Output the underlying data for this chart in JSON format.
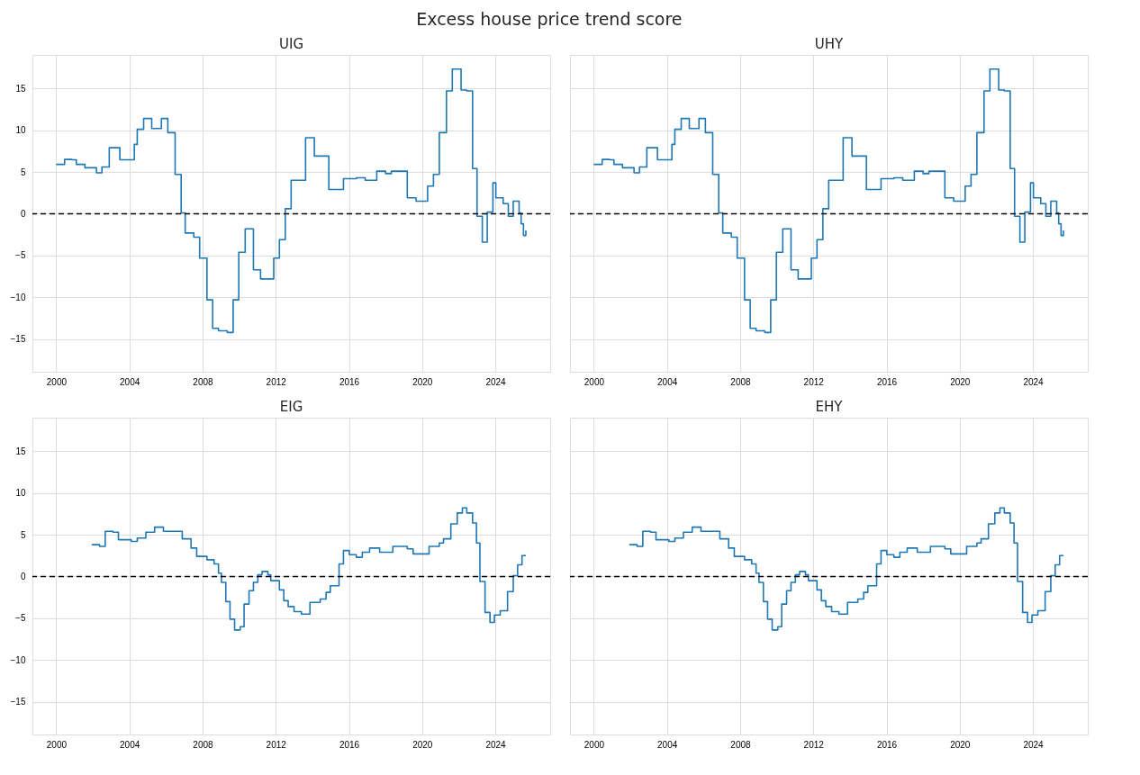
{
  "chart_data": [
    {
      "type": "step",
      "title": "UIG",
      "annotations": [
        "Excess house price trend score"
      ],
      "x": [
        2000.0,
        2000.46,
        2000.86,
        2001.1,
        2001.57,
        2002.2,
        2002.5,
        2002.9,
        2003.48,
        2004.27,
        2004.43,
        2004.78,
        2005.22,
        2005.75,
        2006.1,
        2006.5,
        2006.83,
        2007.05,
        2007.52,
        2007.84,
        2008.24,
        2008.55,
        2008.87,
        2009.35,
        2009.67,
        2009.98,
        2010.33,
        2010.78,
        2011.17,
        2011.89,
        2012.2,
        2012.52,
        2012.84,
        2013.63,
        2014.11,
        2014.9,
        2015.7,
        2016.41,
        2016.89,
        2017.52,
        2018.0,
        2018.32,
        2019.19,
        2019.67,
        2020.3,
        2020.62,
        2020.94,
        2021.33,
        2021.65,
        2022.13,
        2022.44,
        2022.76,
        2023.0,
        2023.29,
        2023.56,
        2023.87,
        2024.03,
        2024.43,
        2024.71,
        2024.98,
        2025.3,
        2025.41,
        2025.54,
        2025.67
      ],
      "series": [
        {
          "color": "#1f77b4",
          "values": [
            5.9,
            6.5,
            6.45,
            5.9,
            5.5,
            4.9,
            5.6,
            7.9,
            6.45,
            8.3,
            10.1,
            11.4,
            10.2,
            11.4,
            9.7,
            4.7,
            0.1,
            -2.3,
            -2.8,
            -5.3,
            -10.3,
            -13.7,
            -14.0,
            -14.2,
            -10.3,
            -4.6,
            -1.8,
            -6.7,
            -7.8,
            -5.3,
            -3.1,
            0.6,
            4.0,
            9.1,
            6.9,
            2.9,
            4.2,
            4.3,
            4.0,
            5.1,
            4.8,
            5.1,
            1.9,
            1.5,
            3.3,
            4.7,
            9.7,
            14.7,
            17.3,
            14.8,
            14.7,
            5.4,
            -0.3,
            -3.4,
            0.2,
            3.7,
            1.9,
            1.2,
            -0.3,
            1.5,
            0.1,
            -1.2,
            -2.6,
            -2.0
          ]
        }
      ],
      "xlim": [
        1998.7,
        2027.0
      ],
      "ylim": [
        -18.9,
        19.0
      ],
      "xticks": [
        2000,
        2004,
        2008,
        2012,
        2016,
        2020,
        2024
      ],
      "yticks": [
        -15,
        -10,
        -5,
        0,
        5,
        10,
        15
      ],
      "grid": true,
      "ref_lines": [
        {
          "axis": "y",
          "value": 0,
          "color": "#000000",
          "line_style": "dashed"
        }
      ]
    },
    {
      "type": "step",
      "title": "UHY",
      "tick_labels": "x",
      "x": [
        2000.0,
        2000.46,
        2000.86,
        2001.1,
        2001.57,
        2002.2,
        2002.5,
        2002.9,
        2003.48,
        2004.27,
        2004.43,
        2004.78,
        2005.22,
        2005.75,
        2006.1,
        2006.5,
        2006.83,
        2007.05,
        2007.52,
        2007.84,
        2008.24,
        2008.55,
        2008.87,
        2009.35,
        2009.67,
        2009.98,
        2010.33,
        2010.78,
        2011.17,
        2011.89,
        2012.2,
        2012.52,
        2012.84,
        2013.63,
        2014.11,
        2014.9,
        2015.7,
        2016.41,
        2016.89,
        2017.52,
        2018.0,
        2018.32,
        2019.19,
        2019.67,
        2020.3,
        2020.62,
        2020.94,
        2021.33,
        2021.65,
        2022.13,
        2022.44,
        2022.76,
        2023.0,
        2023.29,
        2023.56,
        2023.87,
        2024.03,
        2024.43,
        2024.71,
        2024.98,
        2025.3,
        2025.41,
        2025.54,
        2025.67
      ],
      "series": [
        {
          "color": "#1f77b4",
          "values": [
            5.9,
            6.5,
            6.45,
            5.9,
            5.5,
            4.9,
            5.6,
            7.9,
            6.45,
            8.3,
            10.1,
            11.4,
            10.2,
            11.4,
            9.7,
            4.7,
            0.1,
            -2.3,
            -2.8,
            -5.3,
            -10.3,
            -13.7,
            -14.0,
            -14.2,
            -10.3,
            -4.6,
            -1.8,
            -6.7,
            -7.8,
            -5.3,
            -3.1,
            0.6,
            4.0,
            9.1,
            6.9,
            2.9,
            4.2,
            4.3,
            4.0,
            5.1,
            4.8,
            5.1,
            1.9,
            1.5,
            3.3,
            4.7,
            9.7,
            14.7,
            17.3,
            14.8,
            14.7,
            5.4,
            -0.3,
            -3.4,
            0.2,
            3.7,
            1.9,
            1.2,
            -0.3,
            1.5,
            0.1,
            -1.2,
            -2.6,
            -2.0
          ]
        }
      ],
      "xlim": [
        1998.7,
        2027.0
      ],
      "ylim": [
        -18.9,
        19.0
      ],
      "xticks": [
        2000,
        2004,
        2008,
        2012,
        2016,
        2020,
        2024
      ],
      "yticks": [
        -15,
        -10,
        -5,
        0,
        5,
        10,
        15
      ],
      "grid": true,
      "ref_lines": [
        {
          "axis": "y",
          "value": 0,
          "color": "#000000",
          "line_style": "dashed"
        }
      ]
    },
    {
      "type": "step",
      "title": "EIG",
      "x": [
        2001.94,
        2002.37,
        2002.68,
        2003.1,
        2003.4,
        2004.1,
        2004.43,
        2004.9,
        2005.38,
        2005.86,
        2006.5,
        2006.89,
        2007.37,
        2007.68,
        2008.24,
        2008.63,
        2008.87,
        2009.03,
        2009.27,
        2009.5,
        2009.75,
        2010.06,
        2010.27,
        2010.54,
        2010.78,
        2011.02,
        2011.25,
        2011.57,
        2011.73,
        2012.2,
        2012.44,
        2012.68,
        2013.0,
        2013.4,
        2013.87,
        2014.43,
        2014.75,
        2014.98,
        2015.46,
        2015.7,
        2016.02,
        2016.4,
        2016.73,
        2017.13,
        2017.68,
        2018.4,
        2019.19,
        2019.51,
        2019.98,
        2020.38,
        2020.94,
        2021.17,
        2021.57,
        2021.92,
        2022.2,
        2022.44,
        2022.76,
        2022.97,
        2023.16,
        2023.44,
        2023.71,
        2023.95,
        2024.27,
        2024.67,
        2024.98,
        2025.22,
        2025.46,
        2025.67
      ],
      "series": [
        {
          "color": "#1f77b4",
          "values": [
            3.8,
            3.6,
            5.4,
            5.3,
            4.4,
            4.2,
            4.6,
            5.3,
            5.9,
            5.4,
            5.4,
            4.5,
            3.4,
            2.4,
            2.0,
            1.5,
            0.4,
            -0.7,
            -3.0,
            -5.1,
            -6.4,
            -6.0,
            -3.3,
            -1.7,
            -0.7,
            0.2,
            0.6,
            0.2,
            -0.5,
            -1.6,
            -2.9,
            -3.6,
            -4.2,
            -4.5,
            -3.1,
            -2.7,
            -1.9,
            -1.1,
            1.5,
            3.1,
            2.6,
            2.3,
            2.9,
            3.4,
            2.9,
            3.6,
            3.3,
            2.7,
            2.7,
            3.6,
            4.0,
            4.5,
            6.3,
            7.6,
            8.2,
            7.6,
            6.4,
            4.0,
            -0.6,
            -4.3,
            -5.5,
            -4.6,
            -4.1,
            -1.8,
            0.1,
            1.4,
            2.5,
            2.5
          ]
        }
      ],
      "xlim": [
        1998.7,
        2027.0
      ],
      "ylim": [
        -18.9,
        19.0
      ],
      "xticks": [
        2000,
        2004,
        2008,
        2012,
        2016,
        2020,
        2024
      ],
      "yticks": [
        -15,
        -10,
        -5,
        0,
        5,
        10,
        15
      ],
      "grid": true,
      "ref_lines": [
        {
          "axis": "y",
          "value": 0,
          "color": "#000000",
          "line_style": "dashed"
        }
      ]
    },
    {
      "type": "step",
      "title": "EHY",
      "tick_labels": "x",
      "x": [
        2001.94,
        2002.37,
        2002.68,
        2003.1,
        2003.4,
        2004.1,
        2004.43,
        2004.9,
        2005.38,
        2005.86,
        2006.5,
        2006.89,
        2007.37,
        2007.68,
        2008.24,
        2008.63,
        2008.87,
        2009.03,
        2009.27,
        2009.5,
        2009.75,
        2010.06,
        2010.27,
        2010.54,
        2010.78,
        2011.02,
        2011.25,
        2011.57,
        2011.73,
        2012.2,
        2012.44,
        2012.68,
        2013.0,
        2013.4,
        2013.87,
        2014.43,
        2014.75,
        2014.98,
        2015.46,
        2015.7,
        2016.02,
        2016.4,
        2016.73,
        2017.13,
        2017.68,
        2018.4,
        2019.19,
        2019.51,
        2019.98,
        2020.38,
        2020.94,
        2021.17,
        2021.57,
        2021.92,
        2022.2,
        2022.44,
        2022.76,
        2022.97,
        2023.16,
        2023.44,
        2023.71,
        2023.95,
        2024.27,
        2024.67,
        2024.98,
        2025.22,
        2025.46,
        2025.67
      ],
      "series": [
        {
          "color": "#1f77b4",
          "values": [
            3.8,
            3.6,
            5.4,
            5.3,
            4.4,
            4.2,
            4.6,
            5.3,
            5.9,
            5.4,
            5.4,
            4.5,
            3.4,
            2.4,
            2.0,
            1.5,
            0.4,
            -0.7,
            -3.0,
            -5.1,
            -6.4,
            -6.0,
            -3.3,
            -1.7,
            -0.7,
            0.2,
            0.6,
            0.2,
            -0.5,
            -1.6,
            -2.9,
            -3.6,
            -4.2,
            -4.5,
            -3.1,
            -2.7,
            -1.9,
            -1.1,
            1.5,
            3.1,
            2.6,
            2.3,
            2.9,
            3.4,
            2.9,
            3.6,
            3.3,
            2.7,
            2.7,
            3.6,
            4.0,
            4.5,
            6.3,
            7.6,
            8.2,
            7.6,
            6.4,
            4.0,
            -0.6,
            -4.3,
            -5.5,
            -4.6,
            -4.1,
            -1.8,
            0.1,
            1.4,
            2.5,
            2.5
          ]
        }
      ],
      "xlim": [
        1998.7,
        2027.0
      ],
      "ylim": [
        -18.9,
        19.0
      ],
      "xticks": [
        2000,
        2004,
        2008,
        2012,
        2016,
        2020,
        2024
      ],
      "yticks": [
        -15,
        -10,
        -5,
        0,
        5,
        10,
        15
      ],
      "grid": true,
      "ref_lines": [
        {
          "axis": "y",
          "value": 0,
          "color": "#000000",
          "line_style": "dashed"
        }
      ]
    }
  ]
}
